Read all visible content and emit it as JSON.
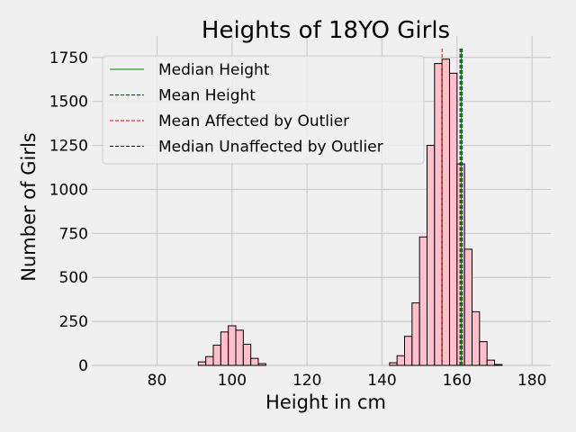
{
  "chart_data": {
    "type": "bar",
    "title": "Heights of 18YO Girls",
    "xlabel": "Height in cm",
    "ylabel": "Number of Girls",
    "xlim": [
      65,
      185
    ],
    "ylim": [
      0,
      1800
    ],
    "xticks": [
      80,
      100,
      120,
      140,
      160,
      180
    ],
    "yticks": [
      0,
      250,
      500,
      750,
      1000,
      1250,
      1500,
      1750
    ],
    "grid": true,
    "bin_width": 2,
    "bar_color": "#ffc0cb",
    "bar_edge_color": "#000000",
    "histogram_bins": [
      {
        "x0": 91,
        "count": 20
      },
      {
        "x0": 93,
        "count": 50
      },
      {
        "x0": 95,
        "count": 115
      },
      {
        "x0": 97,
        "count": 190
      },
      {
        "x0": 99,
        "count": 225
      },
      {
        "x0": 101,
        "count": 200
      },
      {
        "x0": 103,
        "count": 120
      },
      {
        "x0": 105,
        "count": 40
      },
      {
        "x0": 107,
        "count": 10
      },
      {
        "x0": 142,
        "count": 15
      },
      {
        "x0": 144,
        "count": 55
      },
      {
        "x0": 146,
        "count": 165
      },
      {
        "x0": 148,
        "count": 355
      },
      {
        "x0": 150,
        "count": 730
      },
      {
        "x0": 152,
        "count": 1250
      },
      {
        "x0": 154,
        "count": 1715
      },
      {
        "x0": 156,
        "count": 1740
      },
      {
        "x0": 158,
        "count": 1660
      },
      {
        "x0": 160,
        "count": 1145
      },
      {
        "x0": 162,
        "count": 660
      },
      {
        "x0": 164,
        "count": 305
      },
      {
        "x0": 166,
        "count": 135
      },
      {
        "x0": 168,
        "count": 30
      },
      {
        "x0": 170,
        "count": 5
      }
    ],
    "reference_lines": [
      {
        "name": "Median Height",
        "x": 161.1,
        "color": "#008000",
        "style": "solid"
      },
      {
        "name": "Mean Height",
        "x": 161.4,
        "color": "#0000ff",
        "style": "dashed"
      },
      {
        "name": "Mean Affected by Outlier",
        "x": 156.0,
        "color": "#ff0000",
        "style": "dashed"
      },
      {
        "name": "Median Unaffected by Outlier",
        "x": 160.8,
        "color": "#000000",
        "style": "dashed"
      }
    ],
    "legend": {
      "position": "top-left",
      "entries": [
        {
          "label": "Median Height",
          "color": "#008000",
          "style": "solid"
        },
        {
          "label": "Mean Height",
          "color": "#0000ff",
          "style": "dashed"
        },
        {
          "label": "Mean Affected by Outlier",
          "color": "#ff0000",
          "style": "dashed"
        },
        {
          "label": "Median Unaffected by Outlier",
          "color": "#000000",
          "style": "dashed"
        }
      ]
    }
  }
}
